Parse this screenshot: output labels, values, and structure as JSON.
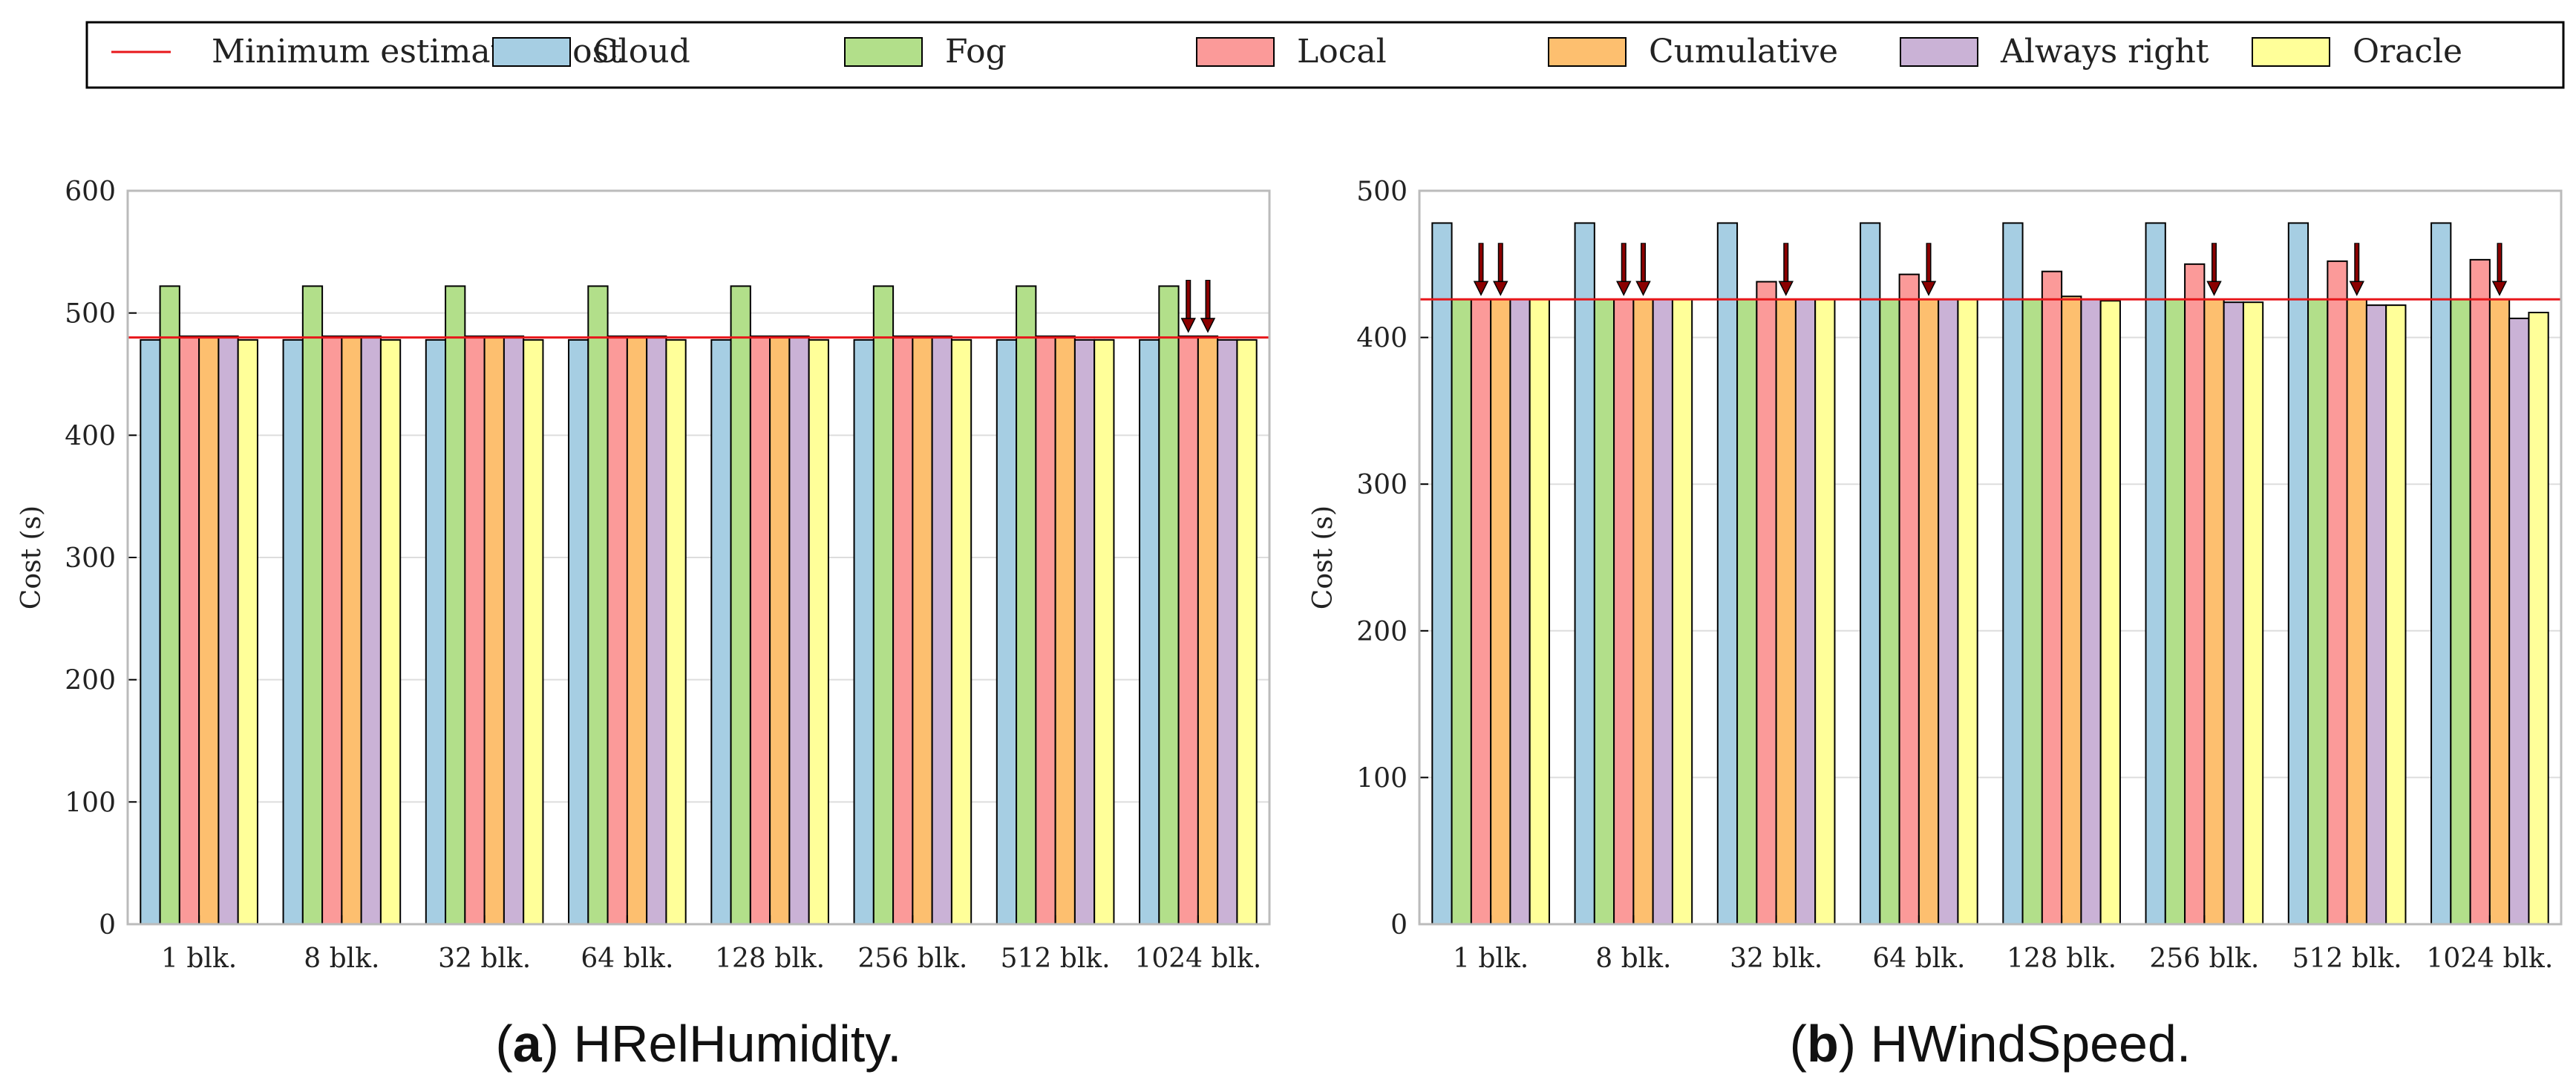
{
  "legend": {
    "items": [
      {
        "label": "Minimum estimated cost",
        "kind": "line",
        "color": "#e8171b"
      },
      {
        "label": "Cloud",
        "kind": "box",
        "color": "#a6cee3"
      },
      {
        "label": "Fog",
        "kind": "box",
        "color": "#b2df8a"
      },
      {
        "label": "Local",
        "kind": "box",
        "color": "#fb9a99"
      },
      {
        "label": "Cumulative",
        "kind": "box",
        "color": "#fdbf6f"
      },
      {
        "label": "Always right",
        "kind": "box",
        "color": "#cab2d6"
      },
      {
        "label": "Oracle",
        "kind": "box",
        "color": "#ffff99"
      }
    ]
  },
  "chart_data": [
    {
      "type": "bar",
      "caption_letter": "a",
      "caption_text": "HRelHumidity.",
      "ylabel": "Cost (s)",
      "ylim": [
        0,
        600
      ],
      "yticks": [
        0,
        100,
        200,
        300,
        400,
        500,
        600
      ],
      "grid": true,
      "categories": [
        "1 blk.",
        "8 blk.",
        "32 blk.",
        "64 blk.",
        "128 blk.",
        "256 blk.",
        "512 blk.",
        "1024 blk."
      ],
      "series": [
        {
          "name": "Cloud",
          "values": [
            478,
            478,
            478,
            478,
            478,
            478,
            478,
            478
          ]
        },
        {
          "name": "Fog",
          "values": [
            522,
            522,
            522,
            522,
            522,
            522,
            522,
            522
          ]
        },
        {
          "name": "Local",
          "values": [
            481,
            481,
            481,
            481,
            481,
            481,
            481,
            481
          ]
        },
        {
          "name": "Cumulative",
          "values": [
            481,
            481,
            481,
            481,
            481,
            481,
            481,
            481
          ]
        },
        {
          "name": "Always right",
          "values": [
            481,
            481,
            481,
            481,
            481,
            481,
            478,
            478
          ]
        },
        {
          "name": "Oracle",
          "values": [
            478,
            478,
            478,
            478,
            478,
            478,
            478,
            478
          ]
        }
      ],
      "min_estimated_cost": 480,
      "arrows": [
        {
          "category": "1024 blk.",
          "series": "Local"
        },
        {
          "category": "1024 blk.",
          "series": "Cumulative"
        }
      ]
    },
    {
      "type": "bar",
      "caption_letter": "b",
      "caption_text": "HWindSpeed.",
      "ylabel": "Cost (s)",
      "ylim": [
        0,
        500
      ],
      "yticks": [
        0,
        100,
        200,
        300,
        400,
        500
      ],
      "grid": true,
      "categories": [
        "1 blk.",
        "8 blk.",
        "32 blk.",
        "64 blk.",
        "128 blk.",
        "256 blk.",
        "512 blk.",
        "1024 blk."
      ],
      "series": [
        {
          "name": "Cloud",
          "values": [
            478,
            478,
            478,
            478,
            478,
            478,
            478,
            478
          ]
        },
        {
          "name": "Fog",
          "values": [
            426,
            426,
            426,
            426,
            426,
            426,
            426,
            426
          ]
        },
        {
          "name": "Local",
          "values": [
            426,
            426,
            438,
            443,
            445,
            450,
            452,
            453
          ]
        },
        {
          "name": "Cumulative",
          "values": [
            426,
            426,
            426,
            426,
            428,
            426,
            426,
            426
          ]
        },
        {
          "name": "Always right",
          "values": [
            426,
            426,
            426,
            426,
            426,
            424,
            422,
            413
          ]
        },
        {
          "name": "Oracle",
          "values": [
            426,
            426,
            426,
            426,
            425,
            424,
            422,
            417
          ]
        }
      ],
      "min_estimated_cost": 426,
      "arrows": [
        {
          "category": "1 blk.",
          "series": "Local"
        },
        {
          "category": "1 blk.",
          "series": "Cumulative"
        },
        {
          "category": "8 blk.",
          "series": "Local"
        },
        {
          "category": "8 blk.",
          "series": "Cumulative"
        },
        {
          "category": "32 blk.",
          "series": "Cumulative"
        },
        {
          "category": "64 blk.",
          "series": "Cumulative"
        },
        {
          "category": "256 blk.",
          "series": "Cumulative"
        },
        {
          "category": "512 blk.",
          "series": "Cumulative"
        },
        {
          "category": "1024 blk.",
          "series": "Cumulative"
        }
      ]
    }
  ]
}
